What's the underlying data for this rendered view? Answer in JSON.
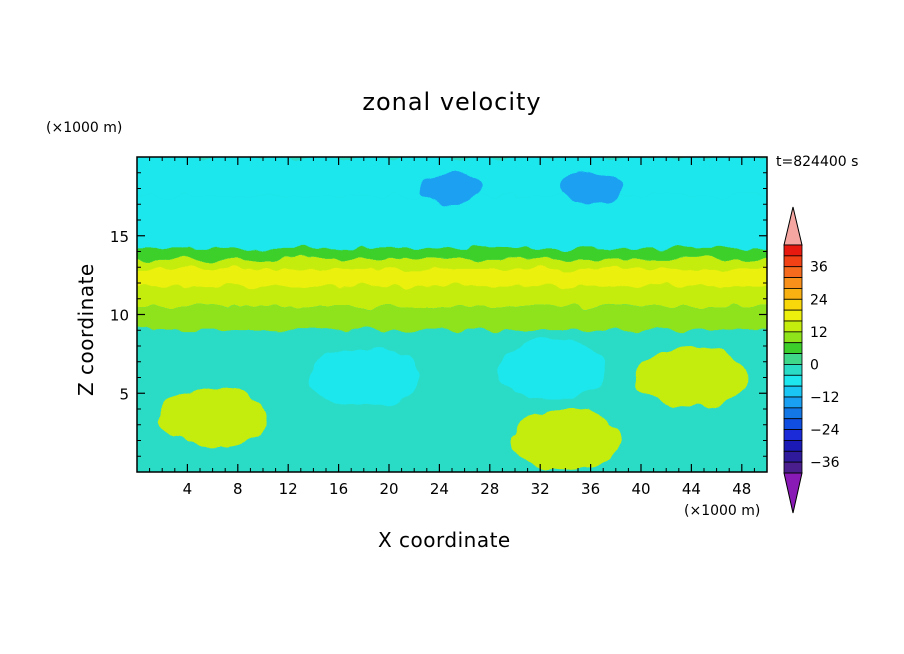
{
  "chart_data": {
    "type": "heatmap",
    "title": "zonal velocity",
    "xlabel": "X coordinate",
    "ylabel": "Z coordinate",
    "x_unit": "(×1000 m)",
    "z_unit": "(×1000 m)",
    "time_label": "t=824400 s",
    "xlim": [
      0,
      50
    ],
    "ylim": [
      0,
      20
    ],
    "x_ticks": [
      "4",
      "8",
      "12",
      "16",
      "20",
      "24",
      "28",
      "32",
      "36",
      "40",
      "44",
      "48"
    ],
    "y_ticks": [
      "5",
      "10",
      "15"
    ],
    "colorbar": {
      "ticks": [
        "36",
        "24",
        "12",
        "0",
        "−12",
        "−24",
        "−36"
      ],
      "levels_top_to_bottom": [
        "#e8190f",
        "#f24114",
        "#f56a1d",
        "#f89019",
        "#f9b112",
        "#f9d80b",
        "#ecf00c",
        "#c4ec0c",
        "#8ee31a",
        "#3ccf2b",
        "#3fd88a",
        "#2adcc6",
        "#1ee7ed",
        "#19c6f4",
        "#1aa0f2",
        "#1477e6",
        "#0f4ee0",
        "#1b2bd8",
        "#1c1ab6",
        "#2e1a9b",
        "#4a1f8d"
      ],
      "over_color": "#f5a6a0",
      "under_color": "#8a1ab5"
    },
    "bands": [
      {
        "z_range": [
          17.5,
          20
        ],
        "value": -10,
        "color": "#1ee7ed"
      },
      {
        "z_range": [
          14,
          17.5
        ],
        "value": -8,
        "color": "#1ee7ed"
      },
      {
        "z_range": [
          13.5,
          14.2
        ],
        "value": 2,
        "color": "#3ccf2b"
      },
      {
        "z_range": [
          10.5,
          13.5
        ],
        "value": 10,
        "color": "#c4ec0c"
      },
      {
        "z_range": [
          11.8,
          12.9
        ],
        "value": 14,
        "color": "#ecf00c"
      },
      {
        "z_range": [
          9,
          10.5
        ],
        "value": 6,
        "color": "#8ee31a"
      },
      {
        "z_range": [
          0,
          9
        ],
        "value": -4,
        "color": "#2adcc6"
      }
    ],
    "features": [
      {
        "x": 18,
        "z": 6,
        "value": -12,
        "color": "#1ee7ed"
      },
      {
        "x": 33,
        "z": 6.5,
        "value": -12,
        "color": "#1ee7ed"
      },
      {
        "x": 25,
        "z": 18,
        "value": -18,
        "color": "#1aa0f2"
      },
      {
        "x": 36,
        "z": 18,
        "value": -18,
        "color": "#1aa0f2"
      },
      {
        "x": 6,
        "z": 3.5,
        "value": 8,
        "color": "#c4ec0c"
      },
      {
        "x": 34,
        "z": 2,
        "value": 8,
        "color": "#c4ec0c"
      },
      {
        "x": 44,
        "z": 6,
        "value": 6,
        "color": "#c4ec0c"
      }
    ]
  }
}
